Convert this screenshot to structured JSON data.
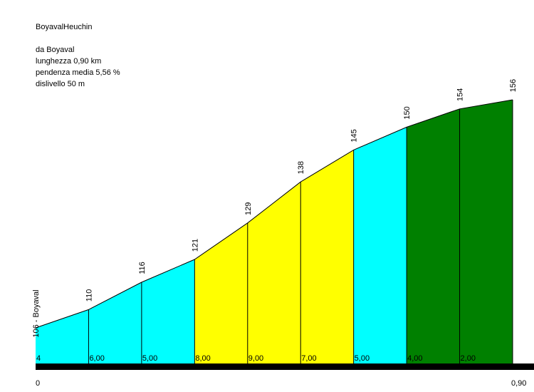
{
  "header": {
    "title": "BoyavalHeuchin",
    "start": "da Boyaval",
    "length": "lunghezza 0,90 km",
    "avg_gradient": "pendenza media 5,56 %",
    "elevation_gain": "dislivello 50 m"
  },
  "chart_data": {
    "type": "area",
    "title": "BoyavalHeuchin",
    "x_unit": "km",
    "x_start_label": "0",
    "x_end_label": "0,90",
    "xlim": [
      0,
      0.9
    ],
    "ylim": [
      100,
      160
    ],
    "start_point_label": "106 - Boyaval",
    "points": [
      {
        "x": 0.0,
        "y": 106
      },
      {
        "x": 0.1,
        "y": 110
      },
      {
        "x": 0.2,
        "y": 116
      },
      {
        "x": 0.3,
        "y": 121
      },
      {
        "x": 0.4,
        "y": 129
      },
      {
        "x": 0.5,
        "y": 138
      },
      {
        "x": 0.6,
        "y": 145
      },
      {
        "x": 0.7,
        "y": 150
      },
      {
        "x": 0.8,
        "y": 154
      },
      {
        "x": 0.9,
        "y": 156
      }
    ],
    "segments": [
      {
        "gradient_label": "4",
        "color": "#00FFFF"
      },
      {
        "gradient_label": "6,00",
        "color": "#00FFFF"
      },
      {
        "gradient_label": "5,00",
        "color": "#00FFFF"
      },
      {
        "gradient_label": "8,00",
        "color": "#FFFF00"
      },
      {
        "gradient_label": "9,00",
        "color": "#FFFF00"
      },
      {
        "gradient_label": "7,00",
        "color": "#FFFF00"
      },
      {
        "gradient_label": "5,00",
        "color": "#00FFFF"
      },
      {
        "gradient_label": "4,00",
        "color": "#008000"
      },
      {
        "gradient_label": "2,00",
        "color": "#008000"
      }
    ]
  }
}
